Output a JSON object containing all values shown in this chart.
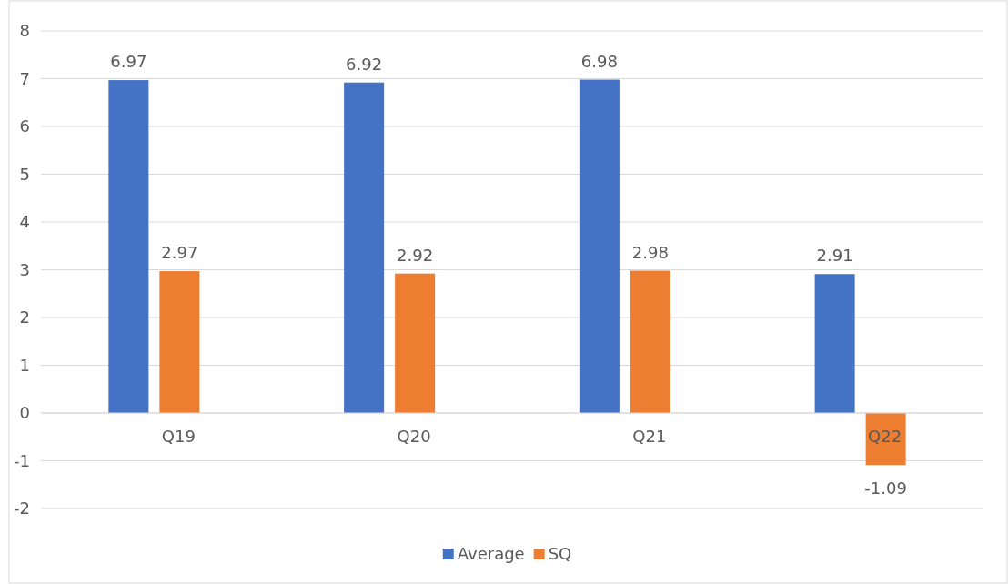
{
  "chart_data": {
    "type": "bar",
    "categories": [
      "Q19",
      "Q20",
      "Q21",
      "Q22"
    ],
    "series": [
      {
        "name": "Average",
        "color": "#4472c4",
        "values": [
          6.97,
          6.92,
          6.98,
          2.91
        ]
      },
      {
        "name": "SQ",
        "color": "#ed7d31",
        "values": [
          2.97,
          2.92,
          2.98,
          -1.09
        ]
      }
    ],
    "ylim": [
      -2,
      8
    ],
    "yticks": [
      -2,
      -1,
      0,
      1,
      2,
      3,
      4,
      5,
      6,
      7,
      8
    ],
    "grid": "y",
    "legend": "bottom",
    "data_labels": true
  }
}
